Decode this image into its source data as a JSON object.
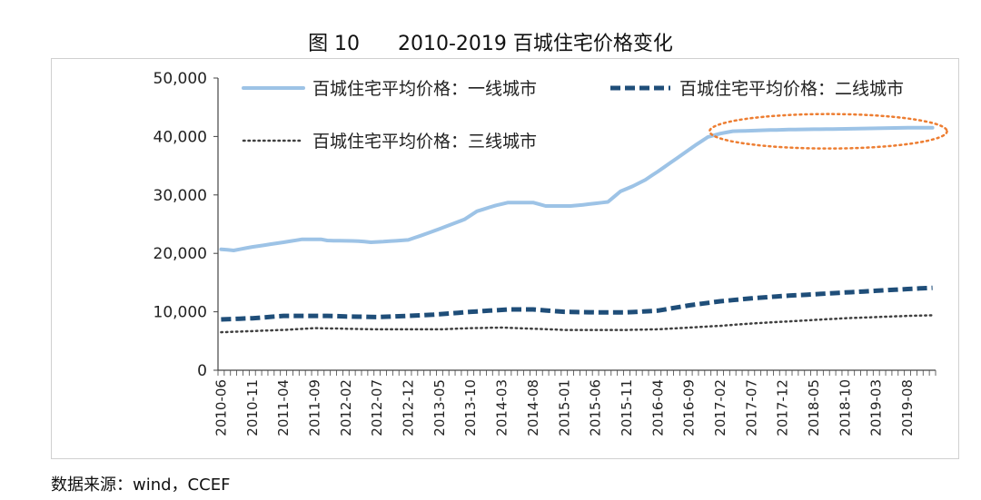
{
  "figure": {
    "title": "图 10      2010-2019 百城住宅价格变化",
    "source": "数据来源：wind，CCEF"
  },
  "chart_data": {
    "type": "line",
    "title": "图 10      2010-2019 百城住宅价格变化",
    "xlabel": "",
    "ylabel": "",
    "ylim": [
      0,
      50000
    ],
    "yticks": [
      "0",
      "10,000",
      "20,000",
      "30,000",
      "40,000",
      "50,000"
    ],
    "yticks_values": [
      0,
      10000,
      20000,
      30000,
      40000,
      50000
    ],
    "x_tick_labels": [
      "2010-06",
      "2010-11",
      "2011-04",
      "2011-09",
      "2012-02",
      "2012-07",
      "2012-12",
      "2013-05",
      "2013-10",
      "2014-03",
      "2014-08",
      "2015-01",
      "2015-06",
      "2015-11",
      "2016-04",
      "2016-09",
      "2017-02",
      "2017-07",
      "2017-12",
      "2018-05",
      "2018-10",
      "2019-03",
      "2019-08"
    ],
    "x_tick_index": [
      0,
      5,
      10,
      15,
      20,
      25,
      30,
      35,
      40,
      45,
      50,
      55,
      60,
      65,
      70,
      75,
      80,
      85,
      90,
      95,
      100,
      105,
      110
    ],
    "n_points": 115,
    "legend_position": "top",
    "grid": false,
    "series": [
      {
        "name": "百城住宅平均价格：一线城市",
        "style": "solid",
        "color": "#9dc3e6",
        "keypoints": [
          [
            0,
            20700
          ],
          [
            2,
            20500
          ],
          [
            5,
            21100
          ],
          [
            10,
            21900
          ],
          [
            13,
            22400
          ],
          [
            16,
            22400
          ],
          [
            17,
            22200
          ],
          [
            22,
            22100
          ],
          [
            24,
            21900
          ],
          [
            26,
            22000
          ],
          [
            30,
            22300
          ],
          [
            33,
            23400
          ],
          [
            36,
            24600
          ],
          [
            39,
            25800
          ],
          [
            41,
            27200
          ],
          [
            44,
            28200
          ],
          [
            46,
            28700
          ],
          [
            50,
            28700
          ],
          [
            52,
            28100
          ],
          [
            56,
            28100
          ],
          [
            58,
            28300
          ],
          [
            62,
            28800
          ],
          [
            64,
            30600
          ],
          [
            66,
            31500
          ],
          [
            68,
            32600
          ],
          [
            70,
            34000
          ],
          [
            72,
            35500
          ],
          [
            74,
            37000
          ],
          [
            76,
            38500
          ],
          [
            78,
            39900
          ],
          [
            80,
            40500
          ],
          [
            82,
            40900
          ],
          [
            88,
            41100
          ],
          [
            92,
            41200
          ],
          [
            100,
            41300
          ],
          [
            105,
            41400
          ],
          [
            110,
            41500
          ],
          [
            114,
            41500
          ]
        ]
      },
      {
        "name": "百城住宅平均价格：二线城市",
        "style": "dashed",
        "color": "#1f4e79",
        "keypoints": [
          [
            0,
            8700
          ],
          [
            5,
            8900
          ],
          [
            10,
            9300
          ],
          [
            17,
            9300
          ],
          [
            20,
            9200
          ],
          [
            25,
            9100
          ],
          [
            30,
            9300
          ],
          [
            34,
            9500
          ],
          [
            40,
            10000
          ],
          [
            46,
            10400
          ],
          [
            50,
            10400
          ],
          [
            55,
            10000
          ],
          [
            60,
            9900
          ],
          [
            65,
            9900
          ],
          [
            70,
            10200
          ],
          [
            75,
            11100
          ],
          [
            80,
            11800
          ],
          [
            85,
            12300
          ],
          [
            90,
            12700
          ],
          [
            95,
            13000
          ],
          [
            100,
            13300
          ],
          [
            105,
            13600
          ],
          [
            110,
            13900
          ],
          [
            114,
            14100
          ]
        ]
      },
      {
        "name": "百城住宅平均价格：三线城市",
        "style": "dotted",
        "color": "#404040",
        "keypoints": [
          [
            0,
            6500
          ],
          [
            5,
            6700
          ],
          [
            10,
            6900
          ],
          [
            15,
            7200
          ],
          [
            20,
            7100
          ],
          [
            25,
            7000
          ],
          [
            30,
            7000
          ],
          [
            35,
            7000
          ],
          [
            40,
            7200
          ],
          [
            45,
            7300
          ],
          [
            50,
            7100
          ],
          [
            55,
            6900
          ],
          [
            60,
            6900
          ],
          [
            65,
            6900
          ],
          [
            70,
            7000
          ],
          [
            75,
            7300
          ],
          [
            80,
            7600
          ],
          [
            85,
            8000
          ],
          [
            90,
            8300
          ],
          [
            95,
            8600
          ],
          [
            100,
            8900
          ],
          [
            105,
            9100
          ],
          [
            110,
            9300
          ],
          [
            114,
            9400
          ]
        ]
      }
    ],
    "annotation": {
      "shape": "ellipse",
      "color": "#ed7d31",
      "style": "dotted",
      "x_range": [
        78,
        114
      ],
      "y_center": 41200
    }
  }
}
